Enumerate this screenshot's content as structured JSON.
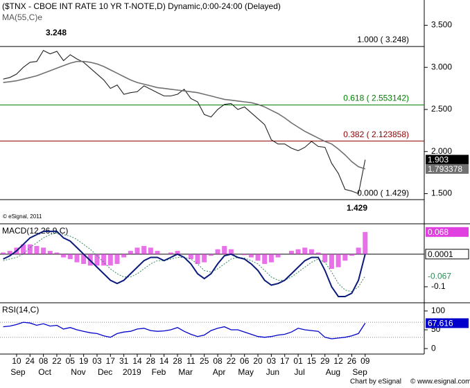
{
  "chart_data": [
    {
      "type": "line",
      "title": "($TNX - CBOE INT RATE 10 YR T-NOTE,D) Dynamic,0:00-24:00 (Delayed)",
      "copyright": "© eSignal, 2011",
      "annotations": [
        "3.248",
        "1.429"
      ],
      "footer": [
        "Chart by eSignal",
        "© www.esignal.com"
      ],
      "categories": [
        null,
        null,
        "10",
        null,
        "24",
        null,
        "08",
        null,
        "22",
        null,
        "05",
        null,
        "19",
        null,
        "03",
        null,
        "17",
        null,
        "31",
        null,
        "14",
        null,
        "28",
        null,
        "14",
        null,
        "28",
        null,
        "11",
        null,
        "25",
        null,
        "08",
        null,
        "22",
        null,
        "06",
        null,
        "20",
        null,
        "03",
        null,
        "17",
        null,
        "01",
        null,
        "15",
        null,
        "29",
        null,
        "12",
        null,
        "26",
        null,
        "09"
      ],
      "months": [
        null,
        null,
        "Sep",
        null,
        null,
        null,
        "Oct",
        null,
        null,
        null,
        null,
        "Nov",
        null,
        null,
        null,
        "Dec",
        null,
        null,
        null,
        "2019",
        null,
        null,
        null,
        "Feb",
        null,
        null,
        null,
        "Mar",
        null,
        null,
        null,
        null,
        "Apr",
        null,
        null,
        null,
        "May",
        null,
        null,
        null,
        "Jun",
        null,
        null,
        null,
        "Jul",
        null,
        null,
        null,
        null,
        "Aug",
        null,
        null,
        null,
        "Sep",
        null
      ],
      "ylim": [
        1.15,
        3.8
      ],
      "yticks": [
        {
          "value": 3.5,
          "label": "3.500"
        },
        {
          "value": 3.0,
          "label": "3.000"
        },
        {
          "value": 2.5,
          "label": "2.500"
        },
        {
          "value": 2.0,
          "label": "2.000"
        },
        {
          "value": 1.5,
          "label": "1.500"
        }
      ],
      "series": [
        {
          "color": "#222222",
          "last_label": "1.903",
          "badge": "#000000",
          "values": [
            2.86,
            2.88,
            2.92,
            3.0,
            3.06,
            3.07,
            3.2,
            3.16,
            3.19,
            3.08,
            3.15,
            3.1,
            3.06,
            2.99,
            2.92,
            2.85,
            2.75,
            2.79,
            2.68,
            2.7,
            2.71,
            2.78,
            2.74,
            2.7,
            2.66,
            2.66,
            2.68,
            2.74,
            2.63,
            2.59,
            2.44,
            2.41,
            2.5,
            2.56,
            2.57,
            2.5,
            2.53,
            2.46,
            2.39,
            2.32,
            2.14,
            2.09,
            2.09,
            2.04,
            2.01,
            2.05,
            2.12,
            2.06,
            2.05,
            1.86,
            1.74,
            1.55,
            1.53,
            1.5,
            1.903
          ]
        },
        {
          "name": "MA(55,C)e",
          "color": "#707070",
          "last_label": "1.793378",
          "badge": "#707070",
          "values": [
            2.82,
            2.83,
            2.84,
            2.86,
            2.88,
            2.9,
            2.93,
            2.96,
            2.99,
            3.02,
            3.05,
            3.07,
            3.07,
            3.06,
            3.04,
            3.01,
            2.97,
            2.93,
            2.89,
            2.85,
            2.82,
            2.8,
            2.78,
            2.76,
            2.75,
            2.74,
            2.73,
            2.72,
            2.71,
            2.7,
            2.68,
            2.66,
            2.64,
            2.62,
            2.61,
            2.6,
            2.59,
            2.58,
            2.56,
            2.53,
            2.49,
            2.45,
            2.4,
            2.34,
            2.29,
            2.24,
            2.2,
            2.16,
            2.12,
            2.09,
            2.03,
            1.96,
            1.88,
            1.82,
            1.793378
          ]
        }
      ],
      "fib": [
        {
          "label": "1.000 ( 3.248)",
          "value": 3.248,
          "color": "#000000"
        },
        {
          "label": "0.618 ( 2.553142)",
          "value": 2.553142,
          "color": "#008000"
        },
        {
          "label": "0.382 ( 2.123858)",
          "value": 2.123858,
          "color": "#8b0000"
        },
        {
          "label": "0.000 ( 1.429)",
          "value": 1.429,
          "color": "#000000"
        }
      ]
    },
    {
      "type": "macd",
      "title": "MACD(12,26,9,C)",
      "ylim": [
        -0.147,
        0.091
      ],
      "yticks": [
        -0.1
      ],
      "levels": [
        0
      ],
      "series": [
        {
          "color": "#0a1a7a",
          "last_label": "0.0001",
          "values": [
            -0.015,
            -0.005,
            0.01,
            0.03,
            0.05,
            0.06,
            0.07,
            0.07,
            0.07,
            0.05,
            0.04,
            0.02,
            0.0,
            -0.02,
            -0.04,
            -0.06,
            -0.08,
            -0.09,
            -0.08,
            -0.06,
            -0.04,
            -0.02,
            -0.01,
            -0.01,
            -0.02,
            -0.01,
            0.0,
            -0.01,
            -0.03,
            -0.06,
            -0.075,
            -0.06,
            -0.03,
            -0.005,
            0.0,
            -0.01,
            -0.015,
            -0.03,
            -0.05,
            -0.08,
            -0.095,
            -0.09,
            -0.08,
            -0.06,
            -0.04,
            -0.02,
            -0.01,
            -0.01,
            -0.05,
            -0.1,
            -0.13,
            -0.13,
            -0.12,
            -0.08,
            0.0001
          ]
        },
        {
          "color": "#2e8b57",
          "last_label": "-0.067",
          "values": [
            -0.02,
            -0.015,
            -0.01,
            0.0,
            0.02,
            0.035,
            0.05,
            0.06,
            0.065,
            0.06,
            0.055,
            0.045,
            0.03,
            0.015,
            -0.005,
            -0.025,
            -0.045,
            -0.06,
            -0.07,
            -0.07,
            -0.06,
            -0.045,
            -0.03,
            -0.02,
            -0.02,
            -0.015,
            -0.01,
            -0.01,
            -0.015,
            -0.03,
            -0.05,
            -0.055,
            -0.045,
            -0.03,
            -0.015,
            -0.01,
            -0.012,
            -0.02,
            -0.03,
            -0.05,
            -0.07,
            -0.08,
            -0.08,
            -0.07,
            -0.055,
            -0.04,
            -0.025,
            -0.015,
            -0.025,
            -0.055,
            -0.09,
            -0.11,
            -0.115,
            -0.1,
            -0.067
          ]
        }
      ],
      "histogram": {
        "color": "#e040e0",
        "last_label": "0.068",
        "values": [
          0.005,
          0.01,
          0.02,
          0.03,
          0.03,
          0.025,
          0.02,
          0.01,
          0.005,
          -0.01,
          -0.015,
          -0.025,
          -0.03,
          -0.035,
          -0.035,
          -0.035,
          -0.035,
          -0.03,
          -0.01,
          0.01,
          0.02,
          0.025,
          0.02,
          0.01,
          0.0,
          0.005,
          0.01,
          0.0,
          -0.015,
          -0.03,
          -0.025,
          -0.005,
          0.015,
          0.025,
          0.015,
          0.0,
          -0.003,
          -0.01,
          -0.02,
          -0.03,
          -0.025,
          -0.01,
          0.0,
          0.01,
          0.015,
          0.02,
          0.015,
          0.005,
          -0.025,
          -0.045,
          -0.04,
          -0.02,
          -0.005,
          0.02,
          0.068
        ]
      }
    },
    {
      "type": "rsi",
      "title": "RSI(14,C)",
      "ylim": [
        -12.7,
        120
      ],
      "yticks": [
        0,
        50,
        100
      ],
      "levels": [
        30,
        70
      ],
      "series": [
        {
          "color": "#0000cc",
          "last_label": "67.616",
          "values": [
            58,
            60,
            64,
            70,
            68,
            62,
            66,
            60,
            62,
            52,
            56,
            50,
            46,
            42,
            40,
            34,
            30,
            40,
            44,
            46,
            52,
            54,
            48,
            46,
            47,
            50,
            56,
            46,
            38,
            32,
            36,
            48,
            54,
            58,
            50,
            50,
            44,
            38,
            32,
            30,
            32,
            36,
            38,
            44,
            54,
            50,
            48,
            46,
            30,
            26,
            28,
            30,
            34,
            40,
            67.616
          ]
        }
      ]
    }
  ]
}
